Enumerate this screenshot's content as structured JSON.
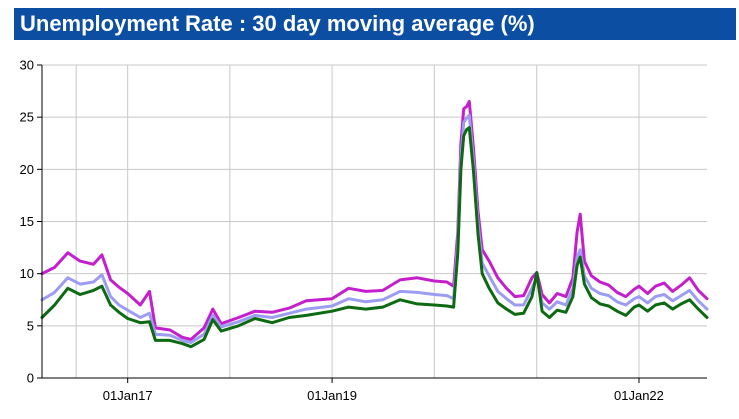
{
  "chart_data": {
    "type": "line",
    "title": "Unemployment Rate : 30 day moving average (%)",
    "xlabel": "",
    "ylabel": "",
    "ylim": [
      0,
      30
    ],
    "yticks": [
      0,
      5,
      10,
      15,
      20,
      25,
      30
    ],
    "xlim": [
      "2016-03-01",
      "2022-09-01"
    ],
    "xticks": [
      {
        "date": "2017-01-01",
        "label": "01Jan17"
      },
      {
        "date": "2019-01-01",
        "label": "01Jan19"
      },
      {
        "date": "2022-01-01",
        "label": "01Jan22"
      }
    ],
    "x_gridlines": [
      "2016-07-01",
      "2017-01-01",
      "2018-01-01",
      "2019-01-01",
      "2020-01-01",
      "2021-01-01",
      "2022-01-01"
    ],
    "grid": true,
    "legend": "none",
    "series": [
      {
        "color": "#c41fcc",
        "points": [
          [
            "2016-03-01",
            10.0
          ],
          [
            "2016-04-15",
            10.6
          ],
          [
            "2016-06-01",
            12.0
          ],
          [
            "2016-07-15",
            11.2
          ],
          [
            "2016-09-01",
            10.9
          ],
          [
            "2016-10-01",
            11.8
          ],
          [
            "2016-11-01",
            9.4
          ],
          [
            "2016-12-01",
            8.7
          ],
          [
            "2017-01-01",
            8.1
          ],
          [
            "2017-02-15",
            7.0
          ],
          [
            "2017-03-20",
            8.3
          ],
          [
            "2017-04-10",
            4.8
          ],
          [
            "2017-06-01",
            4.6
          ],
          [
            "2017-07-15",
            3.9
          ],
          [
            "2017-08-15",
            3.7
          ],
          [
            "2017-10-01",
            4.8
          ],
          [
            "2017-11-01",
            6.6
          ],
          [
            "2017-12-01",
            5.2
          ],
          [
            "2018-02-01",
            5.8
          ],
          [
            "2018-04-01",
            6.4
          ],
          [
            "2018-06-01",
            6.3
          ],
          [
            "2018-08-01",
            6.7
          ],
          [
            "2018-10-01",
            7.4
          ],
          [
            "2019-01-01",
            7.6
          ],
          [
            "2019-03-01",
            8.6
          ],
          [
            "2019-05-01",
            8.3
          ],
          [
            "2019-07-01",
            8.4
          ],
          [
            "2019-09-01",
            9.4
          ],
          [
            "2019-11-01",
            9.6
          ],
          [
            "2020-01-01",
            9.3
          ],
          [
            "2020-02-15",
            9.2
          ],
          [
            "2020-03-10",
            8.8
          ],
          [
            "2020-03-25",
            14.0
          ],
          [
            "2020-04-05",
            22.5
          ],
          [
            "2020-04-15",
            25.8
          ],
          [
            "2020-04-25",
            26.0
          ],
          [
            "2020-05-05",
            26.5
          ],
          [
            "2020-05-20",
            22.0
          ],
          [
            "2020-06-05",
            16.0
          ],
          [
            "2020-06-20",
            12.3
          ],
          [
            "2020-07-15",
            11.2
          ],
          [
            "2020-08-15",
            9.6
          ],
          [
            "2020-09-15",
            8.6
          ],
          [
            "2020-10-15",
            7.8
          ],
          [
            "2020-11-15",
            7.9
          ],
          [
            "2020-12-15",
            9.6
          ],
          [
            "2021-01-01",
            10.1
          ],
          [
            "2021-01-20",
            8.0
          ],
          [
            "2021-02-15",
            7.2
          ],
          [
            "2021-03-15",
            8.1
          ],
          [
            "2021-04-15",
            7.8
          ],
          [
            "2021-05-10",
            9.6
          ],
          [
            "2021-05-25",
            14.0
          ],
          [
            "2021-06-05",
            15.7
          ],
          [
            "2021-06-20",
            11.2
          ],
          [
            "2021-07-15",
            9.8
          ],
          [
            "2021-08-15",
            9.2
          ],
          [
            "2021-09-15",
            8.9
          ],
          [
            "2021-10-15",
            8.2
          ],
          [
            "2021-11-15",
            7.8
          ],
          [
            "2021-12-15",
            8.5
          ],
          [
            "2022-01-01",
            8.8
          ],
          [
            "2022-02-01",
            8.1
          ],
          [
            "2022-03-01",
            8.8
          ],
          [
            "2022-04-01",
            9.1
          ],
          [
            "2022-05-01",
            8.3
          ],
          [
            "2022-06-01",
            8.9
          ],
          [
            "2022-07-01",
            9.6
          ],
          [
            "2022-08-01",
            8.4
          ],
          [
            "2022-09-01",
            7.6
          ]
        ]
      },
      {
        "color": "#9c9cf2",
        "points": [
          [
            "2016-03-01",
            7.5
          ],
          [
            "2016-04-15",
            8.2
          ],
          [
            "2016-06-01",
            9.6
          ],
          [
            "2016-07-15",
            9.0
          ],
          [
            "2016-09-01",
            9.2
          ],
          [
            "2016-10-01",
            9.9
          ],
          [
            "2016-11-01",
            7.8
          ],
          [
            "2016-12-01",
            7.0
          ],
          [
            "2017-01-01",
            6.5
          ],
          [
            "2017-02-15",
            5.8
          ],
          [
            "2017-03-20",
            6.2
          ],
          [
            "2017-04-10",
            4.2
          ],
          [
            "2017-06-01",
            4.1
          ],
          [
            "2017-07-15",
            3.6
          ],
          [
            "2017-08-15",
            3.4
          ],
          [
            "2017-10-01",
            4.2
          ],
          [
            "2017-11-01",
            6.0
          ],
          [
            "2017-12-01",
            4.9
          ],
          [
            "2018-02-01",
            5.4
          ],
          [
            "2018-04-01",
            6.0
          ],
          [
            "2018-06-01",
            5.8
          ],
          [
            "2018-08-01",
            6.2
          ],
          [
            "2018-10-01",
            6.6
          ],
          [
            "2019-01-01",
            6.9
          ],
          [
            "2019-03-01",
            7.6
          ],
          [
            "2019-05-01",
            7.3
          ],
          [
            "2019-07-01",
            7.5
          ],
          [
            "2019-09-01",
            8.3
          ],
          [
            "2019-11-01",
            8.2
          ],
          [
            "2020-01-01",
            8.0
          ],
          [
            "2020-02-15",
            7.9
          ],
          [
            "2020-03-10",
            7.6
          ],
          [
            "2020-03-25",
            13.0
          ],
          [
            "2020-04-05",
            21.0
          ],
          [
            "2020-04-15",
            24.5
          ],
          [
            "2020-04-25",
            24.9
          ],
          [
            "2020-05-05",
            25.2
          ],
          [
            "2020-05-20",
            20.8
          ],
          [
            "2020-06-05",
            14.8
          ],
          [
            "2020-06-20",
            11.0
          ],
          [
            "2020-07-15",
            9.8
          ],
          [
            "2020-08-15",
            8.3
          ],
          [
            "2020-09-15",
            7.6
          ],
          [
            "2020-10-15",
            7.0
          ],
          [
            "2020-11-15",
            7.0
          ],
          [
            "2020-12-15",
            8.6
          ],
          [
            "2021-01-01",
            9.6
          ],
          [
            "2021-01-20",
            7.2
          ],
          [
            "2021-02-15",
            6.6
          ],
          [
            "2021-03-15",
            7.3
          ],
          [
            "2021-04-15",
            7.0
          ],
          [
            "2021-05-10",
            8.6
          ],
          [
            "2021-05-25",
            11.6
          ],
          [
            "2021-06-05",
            12.3
          ],
          [
            "2021-06-20",
            9.8
          ],
          [
            "2021-07-15",
            8.6
          ],
          [
            "2021-08-15",
            8.1
          ],
          [
            "2021-09-15",
            7.9
          ],
          [
            "2021-10-15",
            7.3
          ],
          [
            "2021-11-15",
            7.0
          ],
          [
            "2021-12-15",
            7.6
          ],
          [
            "2022-01-01",
            7.8
          ],
          [
            "2022-02-01",
            7.2
          ],
          [
            "2022-03-01",
            7.8
          ],
          [
            "2022-04-01",
            8.0
          ],
          [
            "2022-05-01",
            7.4
          ],
          [
            "2022-06-01",
            7.9
          ],
          [
            "2022-07-01",
            8.4
          ],
          [
            "2022-08-01",
            7.4
          ],
          [
            "2022-09-01",
            6.6
          ]
        ]
      },
      {
        "color": "#0d6a12",
        "points": [
          [
            "2016-03-01",
            5.8
          ],
          [
            "2016-04-15",
            7.0
          ],
          [
            "2016-06-01",
            8.6
          ],
          [
            "2016-07-15",
            8.0
          ],
          [
            "2016-09-01",
            8.4
          ],
          [
            "2016-10-01",
            8.8
          ],
          [
            "2016-11-01",
            7.0
          ],
          [
            "2016-12-01",
            6.3
          ],
          [
            "2017-01-01",
            5.7
          ],
          [
            "2017-02-15",
            5.3
          ],
          [
            "2017-03-20",
            5.4
          ],
          [
            "2017-04-10",
            3.6
          ],
          [
            "2017-06-01",
            3.6
          ],
          [
            "2017-07-15",
            3.3
          ],
          [
            "2017-08-15",
            3.0
          ],
          [
            "2017-10-01",
            3.7
          ],
          [
            "2017-11-01",
            5.6
          ],
          [
            "2017-12-01",
            4.5
          ],
          [
            "2018-02-01",
            5.0
          ],
          [
            "2018-04-01",
            5.7
          ],
          [
            "2018-06-01",
            5.3
          ],
          [
            "2018-08-01",
            5.8
          ],
          [
            "2018-10-01",
            6.0
          ],
          [
            "2019-01-01",
            6.4
          ],
          [
            "2019-03-01",
            6.8
          ],
          [
            "2019-05-01",
            6.6
          ],
          [
            "2019-07-01",
            6.8
          ],
          [
            "2019-09-01",
            7.5
          ],
          [
            "2019-11-01",
            7.1
          ],
          [
            "2020-01-01",
            7.0
          ],
          [
            "2020-02-15",
            6.9
          ],
          [
            "2020-03-10",
            6.8
          ],
          [
            "2020-03-25",
            12.0
          ],
          [
            "2020-04-05",
            20.0
          ],
          [
            "2020-04-15",
            23.2
          ],
          [
            "2020-04-25",
            23.8
          ],
          [
            "2020-05-05",
            24.0
          ],
          [
            "2020-05-20",
            19.8
          ],
          [
            "2020-06-05",
            13.8
          ],
          [
            "2020-06-20",
            10.0
          ],
          [
            "2020-07-15",
            8.6
          ],
          [
            "2020-08-15",
            7.2
          ],
          [
            "2020-09-15",
            6.6
          ],
          [
            "2020-10-15",
            6.1
          ],
          [
            "2020-11-15",
            6.2
          ],
          [
            "2020-12-15",
            7.8
          ],
          [
            "2021-01-01",
            10.1
          ],
          [
            "2021-01-20",
            6.4
          ],
          [
            "2021-02-15",
            5.8
          ],
          [
            "2021-03-15",
            6.5
          ],
          [
            "2021-04-15",
            6.3
          ],
          [
            "2021-05-10",
            7.8
          ],
          [
            "2021-05-25",
            10.8
          ],
          [
            "2021-06-05",
            11.6
          ],
          [
            "2021-06-20",
            9.0
          ],
          [
            "2021-07-15",
            7.7
          ],
          [
            "2021-08-15",
            7.1
          ],
          [
            "2021-09-15",
            6.9
          ],
          [
            "2021-10-15",
            6.4
          ],
          [
            "2021-11-15",
            6.0
          ],
          [
            "2021-12-15",
            6.8
          ],
          [
            "2022-01-01",
            7.0
          ],
          [
            "2022-02-01",
            6.4
          ],
          [
            "2022-03-01",
            7.0
          ],
          [
            "2022-04-01",
            7.2
          ],
          [
            "2022-05-01",
            6.6
          ],
          [
            "2022-06-01",
            7.1
          ],
          [
            "2022-07-01",
            7.5
          ],
          [
            "2022-08-01",
            6.6
          ],
          [
            "2022-09-01",
            5.8
          ]
        ]
      }
    ]
  }
}
